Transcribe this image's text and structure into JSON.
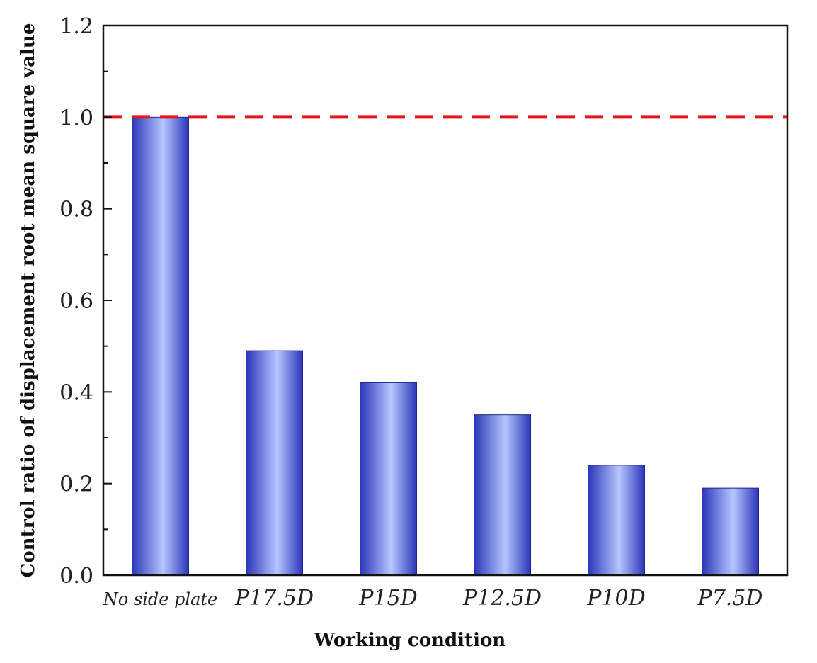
{
  "chart_data": {
    "type": "bar",
    "categories": [
      "No side plate",
      "P17.5D",
      "P15D",
      "P12.5D",
      "P10D",
      "P7.5D"
    ],
    "values": [
      1.0,
      0.49,
      0.42,
      0.35,
      0.24,
      0.19
    ],
    "xlabel": "Working condition",
    "ylabel": "Control ratio of displacement root mean square value",
    "ylim": [
      0,
      1.2
    ],
    "yticks": [
      "0.0",
      "0.2",
      "0.4",
      "0.6",
      "0.8",
      "1.0",
      "1.2"
    ],
    "reference_line": {
      "value": 1.0,
      "style": "dashed",
      "color": "#e8151c"
    },
    "bar_color_edge": "#2a35b8",
    "bar_color_center": "#b7c6ff",
    "grid": false,
    "legend": "none"
  }
}
